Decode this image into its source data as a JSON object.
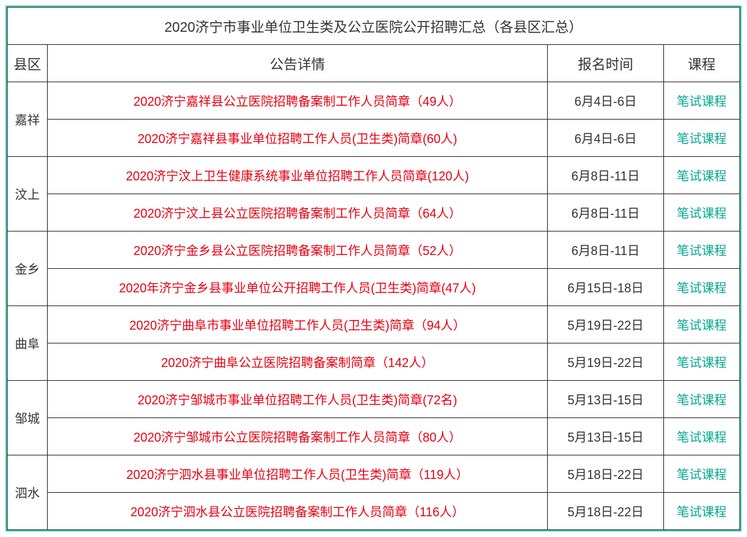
{
  "title": "2020济宁市事业单位卫生类及公立医院公开招聘汇总（各县区汇总）",
  "headers": {
    "county": "县区",
    "detail": "公告详情",
    "time": "报名时间",
    "course": "课程"
  },
  "course_label": "笔试课程",
  "colors": {
    "border_outer": "#3ec9b4",
    "border_inner": "#333333",
    "text_normal": "#333333",
    "link_red": "#e60012",
    "link_teal": "#00a78e",
    "background": "#ffffff"
  },
  "fontsize": {
    "title": 20,
    "header": 20,
    "body": 18
  },
  "groups": [
    {
      "county": "嘉祥",
      "rows": [
        {
          "detail": "2020济宁嘉祥县公立医院招聘备案制工作人员简章（49人）",
          "time": "6月4日-6日"
        },
        {
          "detail": "2020济宁嘉祥县事业单位招聘工作人员(卫生类)简章(60人)",
          "time": "6月4日-6日"
        }
      ]
    },
    {
      "county": "汶上",
      "rows": [
        {
          "detail": "2020济宁汶上卫生健康系统事业单位招聘工作人员简章(120人)",
          "time": "6月8日-11日"
        },
        {
          "detail": "2020济宁汶上县公立医院招聘备案制工作人员简章（64人）",
          "time": "6月8日-11日"
        }
      ]
    },
    {
      "county": "金乡",
      "rows": [
        {
          "detail": "2020济宁金乡县公立医院招聘备案制工作人员简章（52人）",
          "time": "6月8日-11日"
        },
        {
          "detail": "2020年济宁金乡县事业单位公开招聘工作人员(卫生类)简章(47人)",
          "time": "6月15日-18日"
        }
      ]
    },
    {
      "county": "曲阜",
      "rows": [
        {
          "detail": "2020济宁曲阜市事业单位招聘工作人员(卫生类)简章（94人）",
          "time": "5月19日-22日"
        },
        {
          "detail": "2020济宁曲阜公立医院招聘备案制简章（142人）",
          "time": "5月19日-22日"
        }
      ]
    },
    {
      "county": "邹城",
      "rows": [
        {
          "detail": "2020济宁邹城市事业单位招聘工作人员(卫生类)简章(72名)",
          "time": "5月13日-15日"
        },
        {
          "detail": "2020济宁邹城市公立医院招聘备案制工作人员简章（80人）",
          "time": "5月13日-15日"
        }
      ]
    },
    {
      "county": "泗水",
      "rows": [
        {
          "detail": "2020济宁泗水县事业单位招聘工作人员(卫生类)简章（119人）",
          "time": "5月18日-22日"
        },
        {
          "detail": "2020济宁泗水县公立医院招聘备案制工作人员简章（116人）",
          "time": "5月18日-22日"
        }
      ]
    }
  ]
}
